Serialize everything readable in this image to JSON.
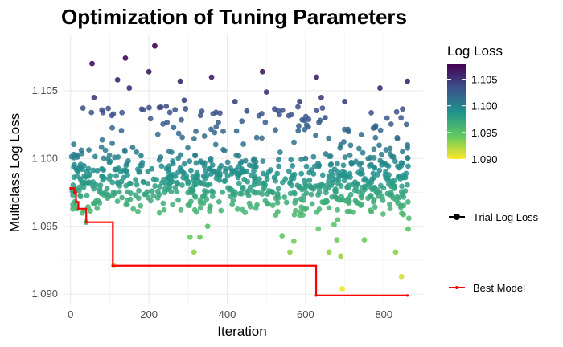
{
  "chart_data": {
    "type": "scatter",
    "title": "Optimization of Tuning Parameters",
    "xlabel": "Iteration",
    "ylabel": "Multiclass Log Loss",
    "xlim": [
      -20,
      900
    ],
    "ylim": [
      1.0893,
      1.1092
    ],
    "x_ticks": [
      0,
      200,
      400,
      600,
      800
    ],
    "y_ticks": [
      1.09,
      1.095,
      1.1,
      1.105
    ],
    "x_tick_labels": [
      "0",
      "200",
      "400",
      "600",
      "800"
    ],
    "y_tick_labels": [
      "1.090",
      "1.095",
      "1.100",
      "1.105"
    ],
    "grid": true,
    "color_scale": {
      "title": "Log Loss",
      "min": 1.09,
      "max": 1.1078,
      "ticks": [
        1.09,
        1.095,
        1.1,
        1.105
      ],
      "tick_labels": [
        "1.090",
        "1.095",
        "1.100",
        "1.105"
      ],
      "colors": [
        "#fde725",
        "#5ec962",
        "#21918c",
        "#3b528b",
        "#440154"
      ]
    },
    "legend": {
      "placement": "right",
      "entries": [
        "Trial Log Loss",
        "Best Model"
      ]
    },
    "series": [
      {
        "name": "Trial Log Loss",
        "kind": "points",
        "points": [
          [
            10,
            1.0978
          ],
          [
            16,
            1.0963
          ],
          [
            40,
            1.0953
          ],
          [
            55,
            1.107
          ],
          [
            60,
            1.1045
          ],
          [
            110,
            1.0921
          ],
          [
            120,
            1.1058
          ],
          [
            140,
            1.1074
          ],
          [
            150,
            1.1052
          ],
          [
            180,
            1.1002
          ],
          [
            200,
            1.1064
          ],
          [
            215,
            1.1083
          ],
          [
            230,
            1.1001
          ],
          [
            280,
            1.1057
          ],
          [
            290,
            1.1043
          ],
          [
            305,
            1.0942
          ],
          [
            315,
            1.0931
          ],
          [
            330,
            1.0942
          ],
          [
            350,
            1.095
          ],
          [
            360,
            1.106
          ],
          [
            420,
            1.1042
          ],
          [
            450,
            1.1035
          ],
          [
            490,
            1.1064
          ],
          [
            500,
            1.1049
          ],
          [
            540,
            1.0943
          ],
          [
            560,
            1.0931
          ],
          [
            570,
            1.0939
          ],
          [
            585,
            1.1042
          ],
          [
            600,
            1.1
          ],
          [
            628,
            1.106
          ],
          [
            640,
            1.1045
          ],
          [
            650,
            1.103
          ],
          [
            660,
            1.0931
          ],
          [
            680,
            1.094
          ],
          [
            690,
            1.0928
          ],
          [
            694,
            1.0904
          ],
          [
            700,
            1.1042
          ],
          [
            710,
            1.102
          ],
          [
            750,
            1.094
          ],
          [
            760,
            1.1
          ],
          [
            790,
            1.1052
          ],
          [
            830,
            1.0931
          ],
          [
            845,
            1.0913
          ],
          [
            860,
            1.1057
          ],
          [
            862,
            1.0948
          ],
          [
            25,
            1.0985
          ],
          [
            80,
            1.0987
          ],
          [
            130,
            1.0983
          ],
          [
            175,
            1.099
          ],
          [
            250,
            1.0985
          ],
          [
            300,
            1.0983
          ],
          [
            340,
            1.0987
          ],
          [
            380,
            1.0984
          ],
          [
            430,
            1.0988
          ],
          [
            470,
            1.0983
          ],
          [
            520,
            1.0986
          ],
          [
            560,
            1.0982
          ],
          [
            610,
            1.0984
          ],
          [
            660,
            1.0987
          ],
          [
            720,
            1.0981
          ],
          [
            770,
            1.0985
          ],
          [
            820,
            1.0983
          ],
          [
            855,
            1.0986
          ]
        ]
      },
      {
        "name": "Best Model",
        "kind": "step",
        "points": [
          [
            0,
            1.0978
          ],
          [
            10,
            1.0975
          ],
          [
            14,
            1.0968
          ],
          [
            20,
            1.0963
          ],
          [
            40,
            1.0953
          ],
          [
            108,
            1.0921
          ],
          [
            627,
            1.0899
          ],
          [
            860,
            1.0899
          ]
        ]
      }
    ]
  }
}
